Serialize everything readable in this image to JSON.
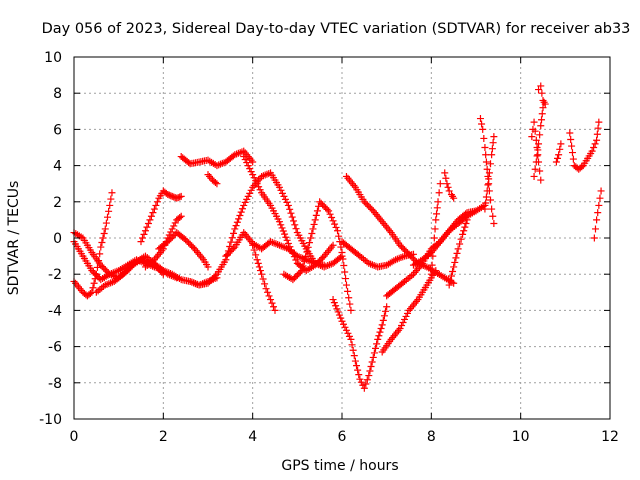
{
  "chart_data": {
    "type": "scatter",
    "title": "Day 056 of 2023, Sidereal Day-to-day VTEC variation (SDTVAR) for receiver ab33",
    "xlabel": "GPS time / hours",
    "ylabel": "SDTVAR / TECUs",
    "xlim": [
      0,
      12
    ],
    "ylim": [
      -10,
      10
    ],
    "xticks": [
      "0",
      "2",
      "4",
      "6",
      "8",
      "10",
      "12"
    ],
    "yticks": [
      "-10",
      "-8",
      "-6",
      "-4",
      "-2",
      "0",
      "2",
      "4",
      "6",
      "8",
      "10"
    ],
    "grid": true,
    "marker": "+",
    "marker_color": "#ff0000",
    "series": [
      {
        "name": "s1",
        "x": [
          0.0,
          0.1,
          0.2,
          0.3,
          0.4,
          0.5,
          0.6,
          0.7,
          0.8,
          0.85
        ],
        "y": [
          -2.4,
          -2.7,
          -3.0,
          -3.2,
          -3.0,
          -2.0,
          -0.5,
          0.5,
          1.8,
          2.5
        ]
      },
      {
        "name": "s2",
        "x": [
          0.0,
          0.2,
          0.4,
          0.6,
          0.8,
          1.0,
          1.2,
          1.4,
          1.6,
          1.8,
          2.0
        ],
        "y": [
          0.3,
          0.0,
          -0.8,
          -1.5,
          -2.0,
          -2.2,
          -1.8,
          -1.3,
          -1.0,
          -1.4,
          -2.0
        ]
      },
      {
        "name": "s3",
        "x": [
          0.0,
          0.2,
          0.4,
          0.6,
          0.8,
          1.0,
          1.2,
          1.4,
          1.6,
          1.8,
          2.0,
          2.2,
          2.4,
          2.6,
          2.8,
          3.0,
          3.2
        ],
        "y": [
          -0.2,
          -1.0,
          -1.8,
          -2.3,
          -2.0,
          -1.8,
          -1.5,
          -1.2,
          -1.4,
          -1.6,
          -1.8,
          -2.0,
          -2.3,
          -2.4,
          -2.6,
          -2.4,
          -2.2
        ]
      },
      {
        "name": "s4",
        "x": [
          0.5,
          0.7,
          0.9,
          1.1,
          1.3,
          1.5,
          1.7,
          1.9,
          2.1,
          2.3
        ],
        "y": [
          -3.0,
          -2.6,
          -2.4,
          -2.0,
          -1.5,
          -1.2,
          -1.4,
          -1.6,
          -2.0,
          -2.2
        ]
      },
      {
        "name": "s5",
        "x": [
          1.5,
          1.6,
          1.7,
          1.8,
          1.9,
          2.0,
          2.1,
          2.2,
          2.3,
          2.4
        ],
        "y": [
          -0.2,
          0.4,
          1.0,
          1.6,
          2.2,
          2.6,
          2.4,
          2.3,
          2.2,
          2.3
        ]
      },
      {
        "name": "s6",
        "x": [
          1.6,
          1.8,
          2.0,
          2.1,
          2.2,
          2.3,
          2.4
        ],
        "y": [
          -1.6,
          -1.2,
          -0.6,
          0.0,
          0.5,
          1.0,
          1.2
        ]
      },
      {
        "name": "s7",
        "x": [
          1.9,
          2.1,
          2.3,
          2.5,
          2.7,
          2.9,
          3.0
        ],
        "y": [
          -0.6,
          -0.2,
          0.3,
          -0.1,
          -0.6,
          -1.2,
          -1.6
        ]
      },
      {
        "name": "s8",
        "x": [
          2.4,
          2.6,
          2.8,
          3.0,
          3.2,
          3.4,
          3.6,
          3.8,
          4.0
        ],
        "y": [
          4.5,
          4.1,
          4.2,
          4.3,
          4.0,
          4.2,
          4.6,
          4.8,
          4.2
        ]
      },
      {
        "name": "s9",
        "x": [
          3.0,
          3.1,
          3.2
        ],
        "y": [
          3.5,
          3.2,
          3.0
        ]
      },
      {
        "name": "s10",
        "x": [
          2.6,
          2.8,
          3.0,
          3.2,
          3.4,
          3.6,
          3.8,
          4.0,
          4.2,
          4.4,
          4.6,
          4.8,
          5.0,
          5.2,
          5.4,
          5.6
        ],
        "y": [
          -2.4,
          -2.6,
          -2.5,
          -2.0,
          -1.2,
          0.5,
          1.8,
          2.8,
          3.4,
          3.6,
          2.8,
          1.8,
          0.3,
          -0.6,
          -1.4,
          -1.5
        ]
      },
      {
        "name": "s11",
        "x": [
          3.4,
          3.6,
          3.8,
          4.0,
          4.2,
          4.4,
          4.6,
          4.8,
          5.0,
          5.2,
          5.4,
          5.6,
          5.8,
          6.0
        ],
        "y": [
          -1.0,
          -0.5,
          0.3,
          -0.3,
          -0.6,
          -0.2,
          -0.4,
          -0.6,
          -1.0,
          -1.2,
          -1.4,
          -1.6,
          -1.4,
          -1.0
        ]
      },
      {
        "name": "s12",
        "x": [
          3.8,
          4.0,
          4.2,
          4.4,
          4.6,
          4.8,
          5.0,
          5.2,
          5.4,
          5.6,
          5.8
        ],
        "y": [
          4.5,
          3.5,
          2.5,
          1.8,
          0.9,
          -0.3,
          -1.4,
          -1.8,
          -1.5,
          -1.0,
          -0.4
        ]
      },
      {
        "name": "s13",
        "x": [
          4.0,
          4.1,
          4.2,
          4.3,
          4.4,
          4.5
        ],
        "y": [
          -0.4,
          -1.2,
          -2.0,
          -2.8,
          -3.4,
          -4.0
        ]
      },
      {
        "name": "s14",
        "x": [
          4.7,
          4.9,
          5.1,
          5.3,
          5.5,
          5.7,
          5.9,
          6.0,
          6.1,
          6.2
        ],
        "y": [
          -2.0,
          -2.3,
          -1.8,
          0.0,
          2.0,
          1.5,
          0.4,
          -0.8,
          -2.6,
          -4.0
        ]
      },
      {
        "name": "s15",
        "x": [
          5.8,
          6.0,
          6.2,
          6.3,
          6.4,
          6.5,
          6.6,
          6.7,
          6.8,
          6.9,
          7.0
        ],
        "y": [
          -3.4,
          -4.6,
          -5.6,
          -6.8,
          -7.8,
          -8.3,
          -7.6,
          -6.6,
          -5.6,
          -4.8,
          -3.8
        ]
      },
      {
        "name": "s16",
        "x": [
          6.1,
          6.3,
          6.5,
          6.7,
          6.9,
          7.1,
          7.3,
          7.5,
          7.7,
          7.9,
          8.1,
          8.3,
          8.5
        ],
        "y": [
          3.4,
          2.8,
          2.0,
          1.5,
          0.9,
          0.3,
          -0.4,
          -0.9,
          -1.4,
          -1.6,
          -1.9,
          -2.2,
          -2.5
        ]
      },
      {
        "name": "s17",
        "x": [
          6.0,
          6.2,
          6.4,
          6.6,
          6.8,
          7.0,
          7.2,
          7.4,
          7.6
        ],
        "y": [
          -0.2,
          -0.6,
          -1.0,
          -1.4,
          -1.6,
          -1.5,
          -1.2,
          -1.0,
          -0.9
        ]
      },
      {
        "name": "s18",
        "x": [
          6.9,
          7.1,
          7.3,
          7.5,
          7.7,
          7.9,
          8.1
        ],
        "y": [
          -6.3,
          -5.6,
          -5.0,
          -4.0,
          -3.4,
          -2.6,
          -1.8
        ]
      },
      {
        "name": "s19",
        "x": [
          7.0,
          7.2,
          7.4,
          7.6,
          7.8,
          8.0,
          8.2,
          8.4,
          8.6,
          8.8,
          9.0
        ],
        "y": [
          -3.2,
          -2.8,
          -2.4,
          -2.0,
          -1.4,
          -0.6,
          -0.2,
          0.4,
          0.8,
          1.2,
          1.5
        ]
      },
      {
        "name": "s20",
        "x": [
          7.6,
          7.8,
          8.0,
          8.2,
          8.4,
          8.6,
          8.8,
          9.0,
          9.2
        ],
        "y": [
          -1.5,
          -1.2,
          -0.8,
          -0.2,
          0.4,
          1.0,
          1.4,
          1.5,
          1.8
        ]
      },
      {
        "name": "s21",
        "x": [
          8.0,
          8.05,
          8.1,
          8.15,
          8.2
        ],
        "y": [
          -2.0,
          -0.5,
          1.0,
          2.0,
          3.0
        ]
      },
      {
        "name": "s22",
        "x": [
          8.3,
          8.35,
          8.4,
          8.45,
          8.5
        ],
        "y": [
          3.6,
          3.0,
          2.6,
          2.4,
          2.2
        ]
      },
      {
        "name": "s23",
        "x": [
          8.4,
          8.5,
          8.6,
          8.7,
          8.8
        ],
        "y": [
          -2.6,
          -1.6,
          -0.6,
          0.2,
          1.0
        ]
      },
      {
        "name": "s24",
        "x": [
          9.1,
          9.15,
          9.2,
          9.25,
          9.3,
          9.35,
          9.4
        ],
        "y": [
          6.6,
          6.0,
          5.0,
          3.8,
          2.6,
          1.6,
          0.8
        ]
      },
      {
        "name": "s25",
        "x": [
          9.2,
          9.25,
          9.3,
          9.35,
          9.4
        ],
        "y": [
          1.6,
          2.6,
          3.6,
          4.6,
          5.6
        ]
      },
      {
        "name": "s26",
        "x": [
          10.3,
          10.35,
          10.4,
          10.45,
          10.5
        ],
        "y": [
          3.4,
          4.2,
          5.2,
          6.2,
          7.2
        ]
      },
      {
        "name": "s27",
        "x": [
          10.25,
          10.3,
          10.35,
          10.4,
          10.45
        ],
        "y": [
          5.6,
          6.4,
          5.4,
          4.2,
          3.2
        ]
      },
      {
        "name": "s28",
        "x": [
          10.4,
          10.45,
          10.5,
          10.55
        ],
        "y": [
          8.2,
          8.4,
          7.6,
          7.4
        ]
      },
      {
        "name": "s29",
        "x": [
          10.8,
          10.85,
          10.9
        ],
        "y": [
          4.2,
          4.6,
          5.2
        ]
      },
      {
        "name": "s30",
        "x": [
          11.1,
          11.2,
          11.3,
          11.4,
          11.5,
          11.6,
          11.7,
          11.75
        ],
        "y": [
          5.8,
          4.0,
          3.8,
          4.0,
          4.4,
          4.8,
          5.4,
          6.4
        ]
      },
      {
        "name": "s31",
        "x": [
          11.65,
          11.7,
          11.75,
          11.8
        ],
        "y": [
          0.0,
          1.0,
          1.8,
          2.6
        ]
      }
    ]
  }
}
